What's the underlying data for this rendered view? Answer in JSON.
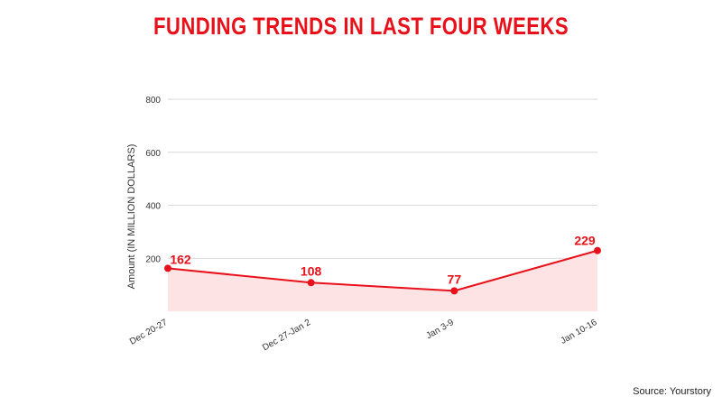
{
  "title": "FUNDING TRENDS IN LAST FOUR WEEKS",
  "source": "Source: Yourstory",
  "colors": {
    "title": "#e8111a",
    "line": "#e8111a",
    "area": "#fde3e3",
    "grid": "#d9d9d9"
  },
  "chart_data": {
    "type": "area",
    "title": "FUNDING TRENDS IN LAST FOUR WEEKS",
    "xlabel": "",
    "ylabel": "Amount (IN MILLION DOLLARS)",
    "categories": [
      "Dec 20-27",
      "Dec 27-Jan 2",
      "Jan 3-9",
      "Jan 10-16"
    ],
    "series": [
      {
        "values": [
          162,
          108,
          77,
          229
        ]
      }
    ],
    "data_labels": [
      "162",
      "108",
      "77",
      "229"
    ],
    "ylim": [
      0,
      800
    ],
    "yticks": [
      200,
      400,
      600,
      800
    ],
    "ytick_labels": [
      "200",
      "400",
      "600",
      "800"
    ],
    "grid": true,
    "legend": "none"
  }
}
